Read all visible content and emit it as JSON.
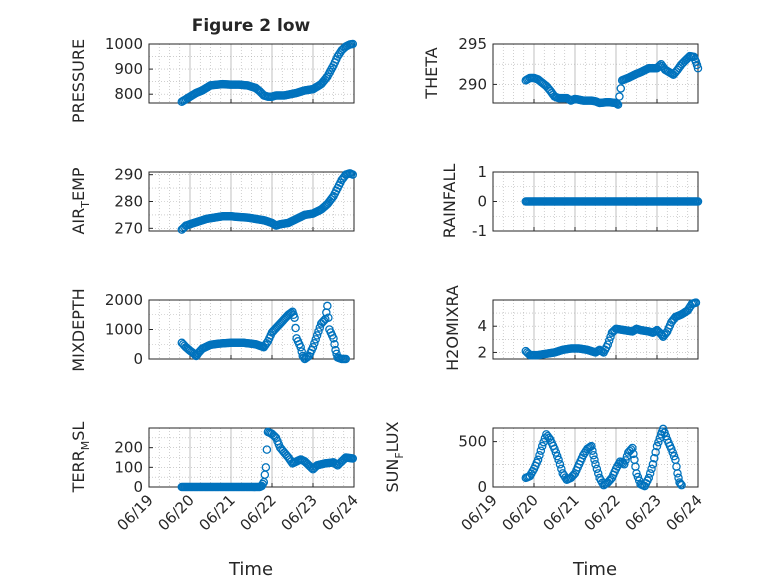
{
  "figure": {
    "title": "Figure 2 low",
    "xlabel": "Time",
    "xticks": [
      "06/19",
      "06/20",
      "06/21",
      "06/22",
      "06/23",
      "06/24"
    ],
    "marker_color": "#0072bd",
    "grid_color": "#b0b0b0"
  },
  "chart_data": [
    {
      "type": "scatter",
      "title": "Figure 2 low",
      "ylabel": "PRESSURE",
      "ylim": [
        765,
        1000
      ],
      "yticks": [
        "800",
        "900",
        "1000"
      ],
      "ytick_values": [
        800,
        900,
        1000
      ],
      "xlim": [
        "06/19",
        "06/24"
      ],
      "grid": true,
      "knots": [
        [
          0.8,
          770
        ],
        [
          0.9,
          780
        ],
        [
          1.0,
          790
        ],
        [
          1.15,
          805
        ],
        [
          1.3,
          815
        ],
        [
          1.5,
          835
        ],
        [
          1.8,
          840
        ],
        [
          2.0,
          838
        ],
        [
          2.2,
          838
        ],
        [
          2.4,
          835
        ],
        [
          2.6,
          825
        ],
        [
          2.7,
          812
        ],
        [
          2.8,
          795
        ],
        [
          2.9,
          790
        ],
        [
          3.0,
          790
        ],
        [
          3.1,
          795
        ],
        [
          3.3,
          795
        ],
        [
          3.6,
          805
        ],
        [
          3.8,
          815
        ],
        [
          4.0,
          820
        ],
        [
          4.2,
          840
        ],
        [
          4.35,
          870
        ],
        [
          4.5,
          915
        ],
        [
          4.6,
          950
        ],
        [
          4.7,
          975
        ],
        [
          4.8,
          990
        ],
        [
          4.9,
          998
        ],
        [
          4.97,
          1000
        ]
      ]
    },
    {
      "type": "scatter",
      "ylabel": "THETA",
      "ylim": [
        287.7,
        295
      ],
      "yticks": [
        "290",
        "295"
      ],
      "ytick_values": [
        290,
        295
      ],
      "xlim": [
        "06/19",
        "06/24"
      ],
      "grid": true,
      "knots": [
        [
          0.8,
          290.5
        ],
        [
          0.9,
          290.8
        ],
        [
          1.0,
          290.8
        ],
        [
          1.1,
          290.6
        ],
        [
          1.2,
          290.2
        ],
        [
          1.3,
          289.8
        ],
        [
          1.4,
          289.2
        ],
        [
          1.5,
          288.5
        ],
        [
          1.6,
          288.3
        ],
        [
          1.8,
          288.3
        ],
        [
          1.9,
          288.0
        ],
        [
          2.0,
          288.2
        ],
        [
          2.2,
          288.0
        ],
        [
          2.4,
          288.0
        ],
        [
          2.5,
          287.9
        ],
        [
          2.6,
          287.7
        ],
        [
          2.8,
          287.8
        ],
        [
          3.0,
          287.7
        ],
        [
          3.05,
          287.5
        ],
        [
          3.15,
          290.5
        ],
        [
          3.3,
          290.8
        ],
        [
          3.5,
          291.3
        ],
        [
          3.6,
          291.5
        ],
        [
          3.8,
          292.0
        ],
        [
          4.0,
          292.0
        ],
        [
          4.1,
          292.5
        ],
        [
          4.2,
          291.8
        ],
        [
          4.3,
          291.5
        ],
        [
          4.4,
          291.2
        ],
        [
          4.5,
          291.8
        ],
        [
          4.6,
          292.5
        ],
        [
          4.7,
          293.0
        ],
        [
          4.8,
          293.5
        ],
        [
          4.9,
          293.4
        ],
        [
          4.95,
          292.8
        ],
        [
          5.0,
          292.0
        ]
      ]
    },
    {
      "type": "scatter",
      "ylabel": "AIR_TEMP",
      "ylim": [
        269,
        291
      ],
      "yticks": [
        "270",
        "280",
        "290"
      ],
      "ytick_values": [
        270,
        280,
        290
      ],
      "xlim": [
        "06/19",
        "06/24"
      ],
      "grid": true,
      "knots": [
        [
          0.8,
          269.5
        ],
        [
          0.9,
          271.0
        ],
        [
          1.0,
          271.5
        ],
        [
          1.2,
          272.5
        ],
        [
          1.4,
          273.5
        ],
        [
          1.6,
          274.0
        ],
        [
          1.8,
          274.5
        ],
        [
          2.0,
          274.5
        ],
        [
          2.2,
          274.2
        ],
        [
          2.4,
          274.0
        ],
        [
          2.6,
          273.5
        ],
        [
          2.8,
          273.0
        ],
        [
          3.0,
          272.0
        ],
        [
          3.1,
          271.0
        ],
        [
          3.2,
          271.5
        ],
        [
          3.4,
          272.0
        ],
        [
          3.6,
          273.5
        ],
        [
          3.8,
          275.0
        ],
        [
          4.0,
          275.5
        ],
        [
          4.2,
          277.0
        ],
        [
          4.35,
          279.0
        ],
        [
          4.5,
          282.0
        ],
        [
          4.6,
          285.0
        ],
        [
          4.7,
          288.0
        ],
        [
          4.8,
          290.0
        ],
        [
          4.9,
          290.5
        ],
        [
          4.97,
          290.0
        ]
      ]
    },
    {
      "type": "scatter",
      "ylabel": "RAINFALL",
      "ylim": [
        -1,
        1
      ],
      "yticks": [
        "-1",
        "0",
        "1"
      ],
      "ytick_values": [
        -1,
        0,
        1
      ],
      "xlim": [
        "06/19",
        "06/24"
      ],
      "grid": true,
      "knots": [
        [
          0.8,
          0
        ],
        [
          5.0,
          0
        ]
      ]
    },
    {
      "type": "scatter",
      "ylabel": "MIXDEPTH",
      "ylim": [
        0,
        2000
      ],
      "yticks": [
        "0",
        "1000",
        "2000"
      ],
      "ytick_values": [
        0,
        1000,
        2000
      ],
      "xlim": [
        "06/19",
        "06/24"
      ],
      "grid": true,
      "knots": [
        [
          0.8,
          550
        ],
        [
          0.9,
          400
        ],
        [
          1.0,
          280
        ],
        [
          1.1,
          180
        ],
        [
          1.15,
          100
        ],
        [
          1.2,
          200
        ],
        [
          1.3,
          350
        ],
        [
          1.5,
          480
        ],
        [
          1.7,
          520
        ],
        [
          2.0,
          550
        ],
        [
          2.3,
          550
        ],
        [
          2.6,
          500
        ],
        [
          2.8,
          400
        ],
        [
          2.9,
          600
        ],
        [
          3.0,
          900
        ],
        [
          3.2,
          1200
        ],
        [
          3.4,
          1500
        ],
        [
          3.5,
          1600
        ],
        [
          3.55,
          1400
        ],
        [
          3.6,
          700
        ],
        [
          3.7,
          400
        ],
        [
          3.75,
          100
        ],
        [
          3.8,
          0
        ],
        [
          3.9,
          100
        ],
        [
          4.0,
          400
        ],
        [
          4.1,
          800
        ],
        [
          4.2,
          1200
        ],
        [
          4.3,
          1350
        ],
        [
          4.35,
          1800
        ],
        [
          4.4,
          1000
        ],
        [
          4.5,
          700
        ],
        [
          4.55,
          300
        ],
        [
          4.6,
          50
        ],
        [
          4.7,
          0
        ],
        [
          4.8,
          0
        ]
      ]
    },
    {
      "type": "scatter",
      "ylabel": "H2OMIXRA",
      "ylim": [
        1.5,
        6.0
      ],
      "yticks": [
        "2",
        "4"
      ],
      "ytick_values": [
        2,
        4
      ],
      "xlim": [
        "06/19",
        "06/24"
      ],
      "grid": true,
      "knots": [
        [
          0.8,
          2.1
        ],
        [
          0.9,
          1.8
        ],
        [
          1.1,
          1.8
        ],
        [
          1.3,
          1.9
        ],
        [
          1.5,
          2.0
        ],
        [
          1.7,
          2.2
        ],
        [
          1.9,
          2.3
        ],
        [
          2.1,
          2.3
        ],
        [
          2.3,
          2.2
        ],
        [
          2.5,
          2.0
        ],
        [
          2.6,
          2.2
        ],
        [
          2.7,
          2.0
        ],
        [
          2.8,
          2.6
        ],
        [
          2.9,
          3.5
        ],
        [
          3.0,
          3.8
        ],
        [
          3.2,
          3.7
        ],
        [
          3.4,
          3.6
        ],
        [
          3.5,
          3.8
        ],
        [
          3.6,
          3.7
        ],
        [
          3.8,
          3.6
        ],
        [
          3.9,
          3.5
        ],
        [
          4.0,
          3.7
        ],
        [
          4.1,
          3.4
        ],
        [
          4.15,
          3.2
        ],
        [
          4.25,
          3.6
        ],
        [
          4.35,
          4.3
        ],
        [
          4.45,
          4.7
        ],
        [
          4.6,
          4.9
        ],
        [
          4.75,
          5.2
        ],
        [
          4.85,
          5.7
        ],
        [
          4.95,
          5.8
        ]
      ]
    },
    {
      "type": "scatter",
      "ylabel": "TERR_MSL",
      "ylim": [
        0,
        300
      ],
      "yticks": [
        "0",
        "100",
        "200"
      ],
      "ytick_values": [
        0,
        100,
        200
      ],
      "xlim": [
        "06/19",
        "06/24"
      ],
      "grid": true,
      "knots": [
        [
          0.8,
          0
        ],
        [
          2.7,
          0
        ],
        [
          2.75,
          5
        ],
        [
          2.8,
          25
        ],
        [
          2.85,
          100
        ],
        [
          2.9,
          280
        ],
        [
          3.0,
          270
        ],
        [
          3.1,
          250
        ],
        [
          3.2,
          200
        ],
        [
          3.3,
          175
        ],
        [
          3.4,
          150
        ],
        [
          3.5,
          120
        ],
        [
          3.6,
          130
        ],
        [
          3.7,
          140
        ],
        [
          3.8,
          130
        ],
        [
          3.9,
          110
        ],
        [
          4.0,
          90
        ],
        [
          4.1,
          110
        ],
        [
          4.3,
          120
        ],
        [
          4.5,
          125
        ],
        [
          4.6,
          110
        ],
        [
          4.7,
          130
        ],
        [
          4.8,
          150
        ],
        [
          4.97,
          145
        ]
      ]
    },
    {
      "type": "scatter",
      "ylabel": "SUN_FLUX",
      "ylim": [
        0,
        650
      ],
      "yticks": [
        "0",
        "500"
      ],
      "ytick_values": [
        0,
        500
      ],
      "xlim": [
        "06/19",
        "06/24"
      ],
      "grid": true,
      "knots": [
        [
          0.8,
          100
        ],
        [
          0.9,
          120
        ],
        [
          1.0,
          200
        ],
        [
          1.1,
          300
        ],
        [
          1.2,
          450
        ],
        [
          1.3,
          580
        ],
        [
          1.4,
          520
        ],
        [
          1.5,
          420
        ],
        [
          1.6,
          300
        ],
        [
          1.7,
          150
        ],
        [
          1.8,
          80
        ],
        [
          1.9,
          100
        ],
        [
          2.0,
          150
        ],
        [
          2.1,
          250
        ],
        [
          2.2,
          350
        ],
        [
          2.3,
          420
        ],
        [
          2.4,
          450
        ],
        [
          2.45,
          350
        ],
        [
          2.5,
          250
        ],
        [
          2.6,
          100
        ],
        [
          2.7,
          20
        ],
        [
          2.8,
          50
        ],
        [
          2.9,
          100
        ],
        [
          3.0,
          200
        ],
        [
          3.1,
          280
        ],
        [
          3.2,
          250
        ],
        [
          3.3,
          380
        ],
        [
          3.4,
          430
        ],
        [
          3.45,
          300
        ],
        [
          3.5,
          150
        ],
        [
          3.6,
          30
        ],
        [
          3.7,
          10
        ],
        [
          3.8,
          100
        ],
        [
          3.9,
          250
        ],
        [
          4.0,
          450
        ],
        [
          4.1,
          580
        ],
        [
          4.15,
          640
        ],
        [
          4.25,
          520
        ],
        [
          4.35,
          420
        ],
        [
          4.45,
          300
        ],
        [
          4.5,
          150
        ],
        [
          4.55,
          50
        ],
        [
          4.6,
          20
        ]
      ]
    }
  ]
}
